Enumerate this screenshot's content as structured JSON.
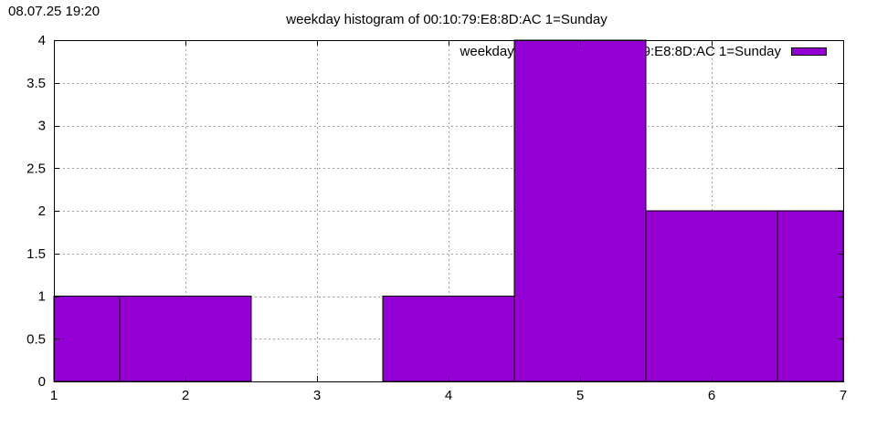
{
  "timestamp": "08.07.25 19:20",
  "chart_data": {
    "type": "bar",
    "title": "weekday histogram of 00:10:79:E8:8D:AC 1=Sunday",
    "xlabel": "",
    "ylabel": "",
    "xlim": [
      1,
      7
    ],
    "ylim": [
      0,
      4
    ],
    "x_ticks": [
      "1",
      "2",
      "3",
      "4",
      "5",
      "6",
      "7"
    ],
    "y_ticks": [
      "0",
      "0.5",
      "1",
      "1.5",
      "2",
      "2.5",
      "3",
      "3.5",
      "4"
    ],
    "grid": true,
    "legend_position": "top-right",
    "bar_color": "#9400d3",
    "series": [
      {
        "name": "weekday histogram of 00:10:79:E8:8D:AC 1=Sunday",
        "x": [
          1,
          2,
          3,
          4,
          5,
          6,
          7
        ],
        "values": [
          1,
          1,
          0,
          1,
          4,
          2,
          2
        ]
      }
    ]
  }
}
